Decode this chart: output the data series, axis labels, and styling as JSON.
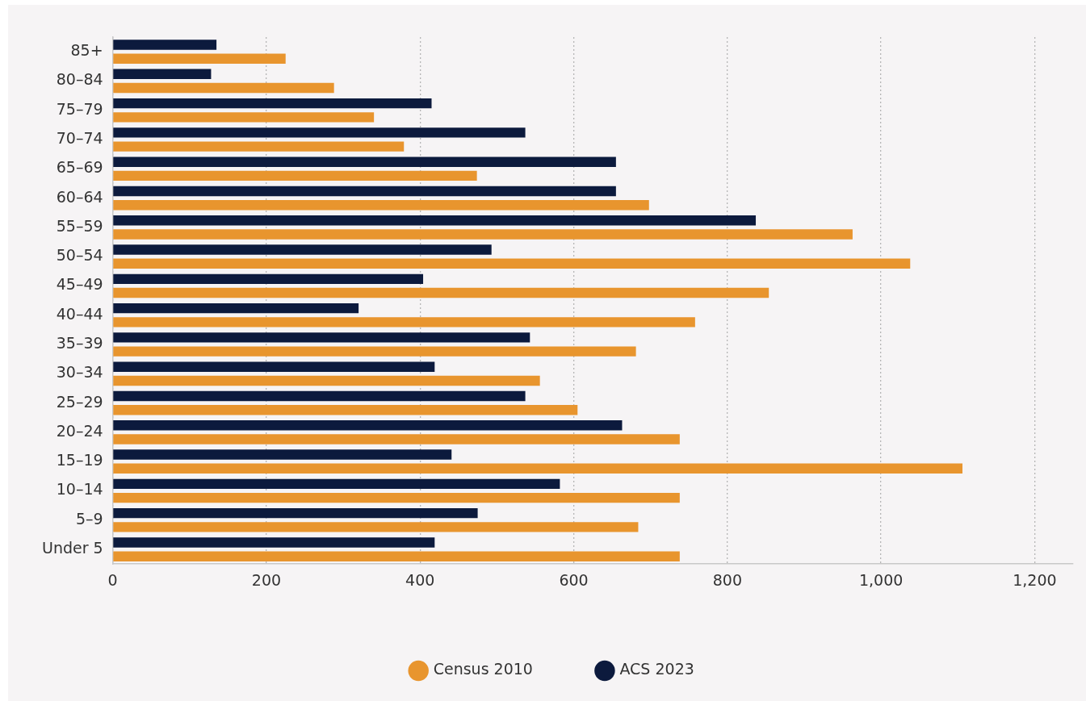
{
  "chart_data": {
    "type": "bar",
    "orientation": "horizontal",
    "categories": [
      "85+",
      "80–84",
      "75–79",
      "70–74",
      "65–69",
      "60–64",
      "55–59",
      "50–54",
      "45–49",
      "40–44",
      "35–39",
      "30–34",
      "25–29",
      "20–24",
      "15–19",
      "10–14",
      "5–9",
      "Under 5"
    ],
    "series": [
      {
        "name": "ACS 2023",
        "color": "#0c1a3d",
        "values": [
          135,
          128,
          415,
          537,
          655,
          655,
          837,
          493,
          404,
          320,
          543,
          419,
          537,
          663,
          441,
          582,
          475,
          419
        ]
      },
      {
        "name": "Census 2010",
        "color": "#e8952e",
        "values": [
          225,
          288,
          340,
          379,
          474,
          698,
          963,
          1038,
          854,
          758,
          681,
          556,
          605,
          738,
          1106,
          738,
          684,
          738
        ]
      }
    ],
    "xlim": [
      0,
      1250
    ],
    "xticks": [
      0,
      200,
      400,
      600,
      800,
      {
        "value": 1000,
        "label": "1,000"
      },
      {
        "value": 1200,
        "label": "1,200"
      }
    ],
    "grid": "x",
    "legend": "bottom"
  }
}
